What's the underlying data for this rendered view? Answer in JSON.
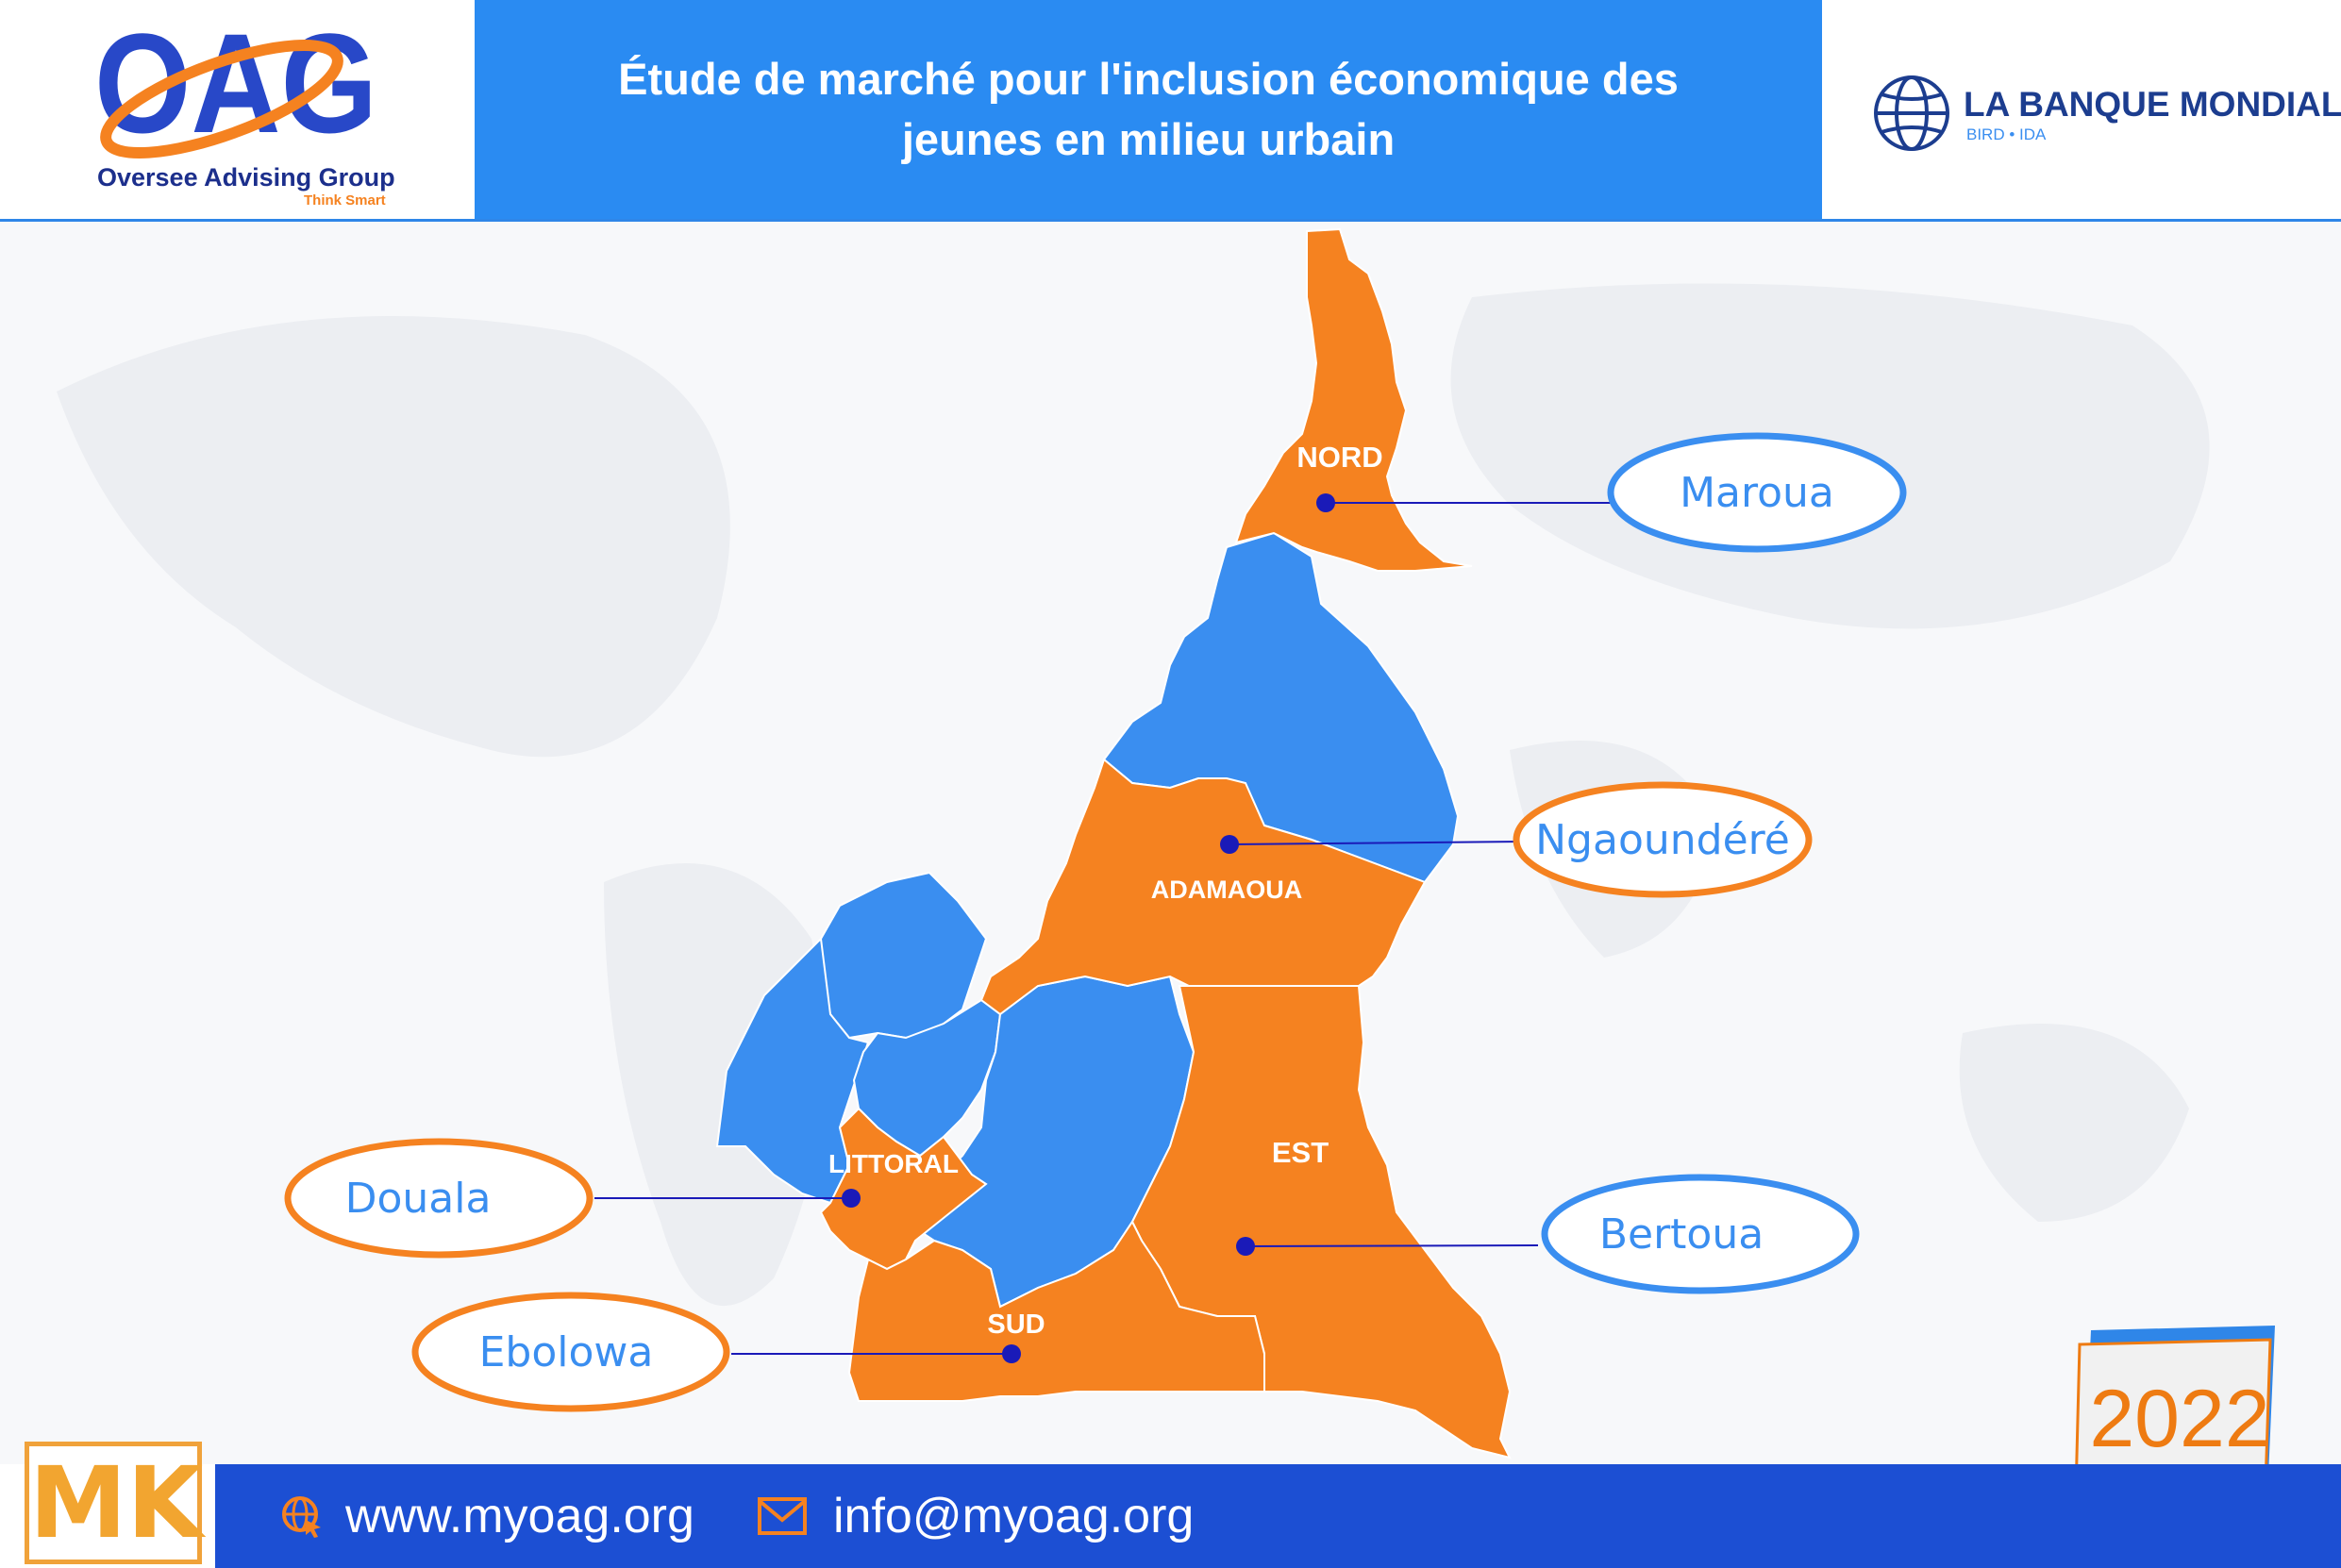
{
  "header": {
    "org_name": "Oversee Advising Group",
    "org_tagline": "Think Smart",
    "logo_letters": "OAG",
    "title_line1": "Étude de marché pour l'inclusion économique des",
    "title_line2": "jeunes en milieu urbain",
    "partner_name": "LA BANQUE MONDIALE",
    "partner_sub": "BIRD • IDA"
  },
  "map": {
    "colors": {
      "highlight": "#f58220",
      "other": "#3a8ef0",
      "dot": "#1a1ab8"
    },
    "regions": [
      {
        "label": "NORD",
        "city": "Maroua"
      },
      {
        "label": "ADAMAOUA",
        "city": "Ngaoundéré"
      },
      {
        "label": "LITTORAL",
        "city": "Douala"
      },
      {
        "label": "EST",
        "city": "Bertoua"
      },
      {
        "label": "SUD",
        "city": "Ebolowa"
      }
    ]
  },
  "footer": {
    "brand": "MK",
    "website": "www.myoag.org",
    "email": "info@myoag.org"
  },
  "year": "2022"
}
